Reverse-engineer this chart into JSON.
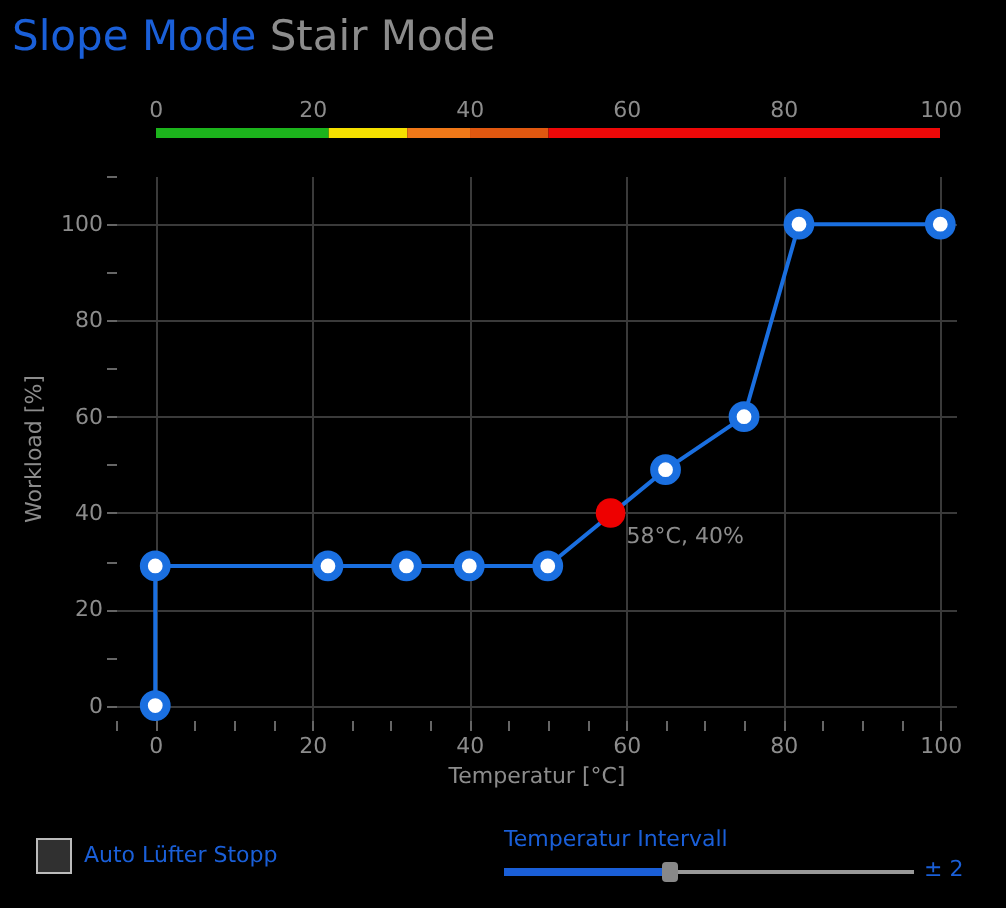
{
  "chart_data": {
    "type": "line",
    "title": "Slope Mode",
    "xlabel": "Temperatur [°C]",
    "ylabel": "Workload [%]",
    "x": [
      0,
      0,
      22,
      32,
      40,
      50,
      65,
      75,
      82,
      100
    ],
    "series": [
      {
        "color": "#1a6fe0",
        "marker": "circle",
        "values": [
          0,
          29,
          29,
          29,
          29,
          29,
          49,
          60,
          100,
          100
        ]
      },
      {
        "type": "scatter",
        "color": "#ee0000",
        "x": [
          58
        ],
        "values": [
          40
        ]
      }
    ],
    "xlim": [
      -5,
      102
    ],
    "ylim": [
      -3,
      110
    ],
    "xticks": [
      {
        "value": -5,
        "label": null
      },
      0,
      {
        "value": 5,
        "label": null
      },
      {
        "value": 10,
        "label": null
      },
      {
        "value": 15,
        "label": null
      },
      20,
      {
        "value": 25,
        "label": null
      },
      {
        "value": 30,
        "label": null
      },
      {
        "value": 35,
        "label": null
      },
      40,
      {
        "value": 45,
        "label": null
      },
      {
        "value": 50,
        "label": null
      },
      {
        "value": 55,
        "label": null
      },
      60,
      {
        "value": 65,
        "label": null
      },
      {
        "value": 70,
        "label": null
      },
      {
        "value": 75,
        "label": null
      },
      80,
      {
        "value": 85,
        "label": null
      },
      {
        "value": 90,
        "label": null
      },
      {
        "value": 95,
        "label": null
      },
      100
    ],
    "yticks": [
      0,
      {
        "value": 10,
        "label": null
      },
      20,
      {
        "value": 30,
        "label": null
      },
      40,
      {
        "value": 50,
        "label": null
      },
      60,
      {
        "value": 70,
        "label": null
      },
      80,
      {
        "value": 90,
        "label": null
      },
      100,
      {
        "value": 110,
        "label": null
      }
    ],
    "x2lim": [
      -5,
      102
    ],
    "x2ticks": [
      0,
      20,
      40,
      60,
      80,
      100
    ],
    "grid": true,
    "annotations": [
      "Stair Mode",
      "Auto Lüfter Stopp",
      "Temperatur Intervall",
      "± 2",
      {
        "text": "58°C, 40%",
        "x": 58,
        "y": 40
      }
    ]
  }
}
